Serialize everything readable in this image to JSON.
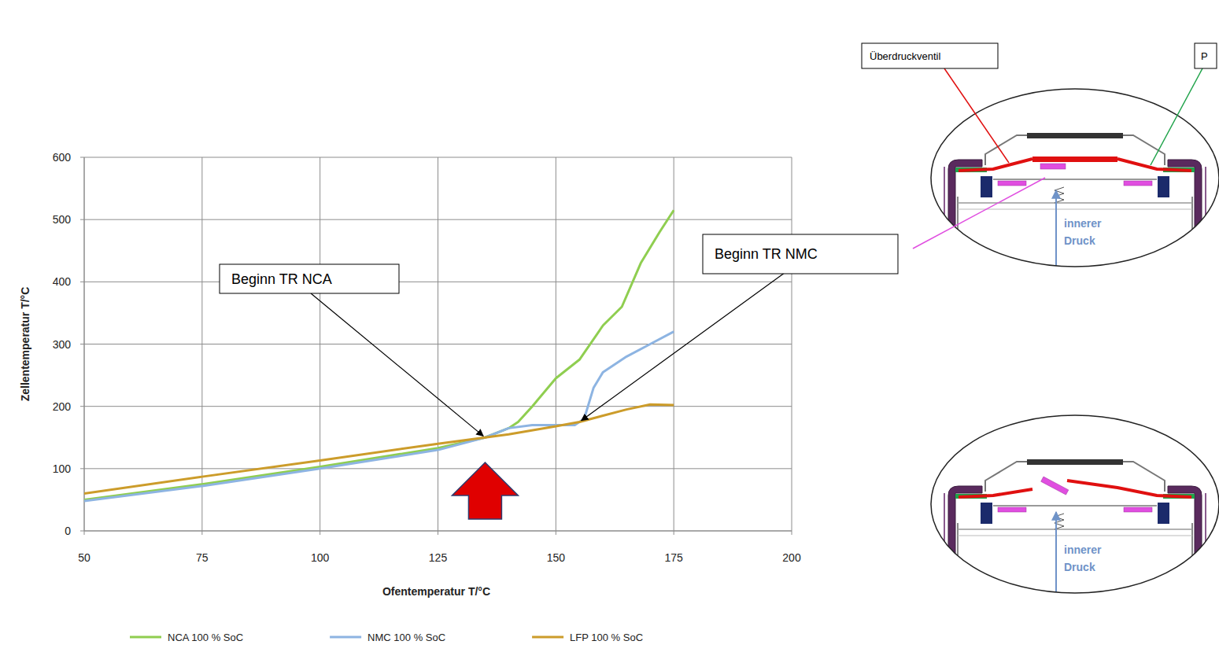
{
  "chart_data": {
    "type": "line",
    "x_label": "Ofentemperatur T/°C",
    "y_label": "Zellentemperatur T/°C",
    "xlim": [
      50,
      200
    ],
    "ylim": [
      0,
      600
    ],
    "xticks": [
      50,
      75,
      100,
      125,
      150,
      175,
      200
    ],
    "yticks": [
      0,
      100,
      200,
      300,
      400,
      500,
      600
    ],
    "grid": true,
    "legend": "bottom",
    "series": [
      {
        "name": "NCA 100 % SoC",
        "color": "#8fce50",
        "x": [
          50,
          75,
          100,
          125,
          135,
          140,
          142,
          145,
          150,
          155,
          160,
          164,
          168,
          172,
          175
        ],
        "values": [
          50,
          75,
          103,
          133,
          150,
          165,
          175,
          200,
          245,
          275,
          330,
          360,
          430,
          480,
          515
        ]
      },
      {
        "name": "NMC 100 % SoC",
        "color": "#8db4e2",
        "x": [
          50,
          75,
          100,
          125,
          135,
          140,
          145,
          150,
          154,
          156,
          158,
          160,
          165,
          170,
          175
        ],
        "values": [
          48,
          72,
          100,
          130,
          150,
          165,
          170,
          170,
          170,
          180,
          230,
          255,
          280,
          300,
          320
        ]
      },
      {
        "name": "LFP 100 % SoC",
        "color": "#cc9c2a",
        "x": [
          50,
          75,
          100,
          125,
          135,
          140,
          150,
          155,
          160,
          165,
          170,
          175
        ],
        "values": [
          60,
          87,
          113,
          140,
          150,
          155,
          168,
          175,
          185,
          195,
          203,
          202
        ]
      }
    ],
    "annotations": [
      {
        "text": "Beginn TR NCA",
        "x": 135,
        "y": 150
      },
      {
        "text": "Beginn TR NMC",
        "x": 155,
        "y": 175
      }
    ]
  },
  "diagram": {
    "valve_label": "Überdruckventil",
    "p_label": "P",
    "details": [
      {
        "pressure_label": [
          "innerer",
          "Druck"
        ]
      },
      {
        "pressure_label": [
          "innerer",
          "Druck"
        ]
      }
    ]
  }
}
